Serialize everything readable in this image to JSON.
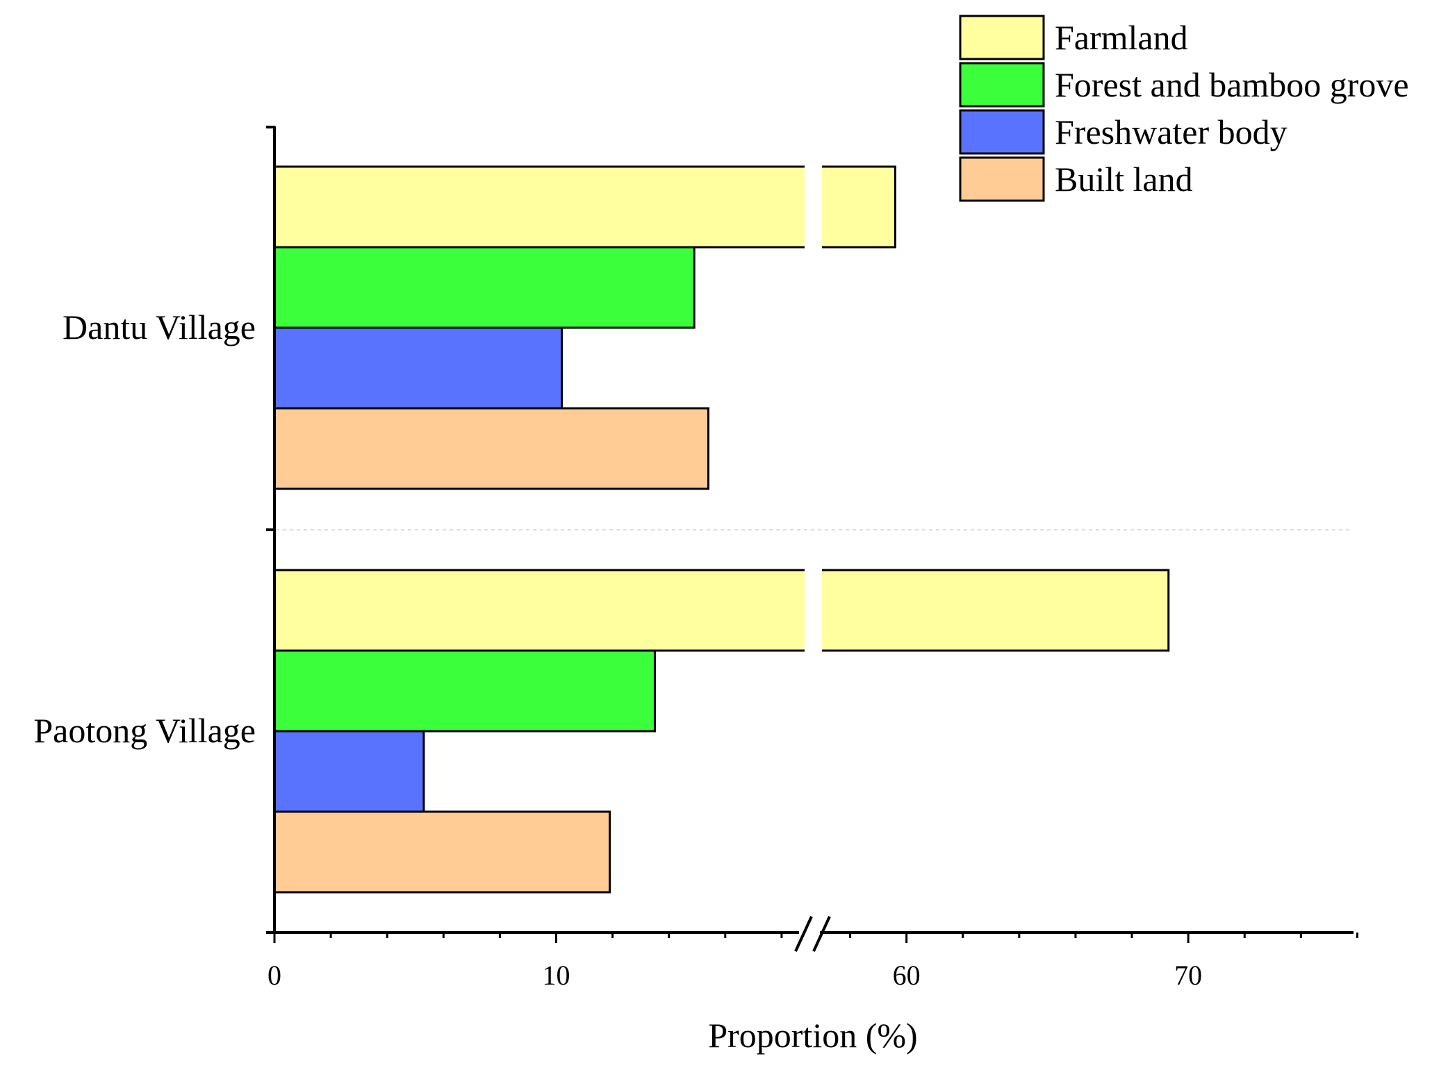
{
  "chart_data": {
    "type": "bar",
    "orientation": "horizontal",
    "categories": [
      "Dantu Village",
      "Paotong Village"
    ],
    "series": [
      {
        "name": "Farmland",
        "color": "#ffffa0",
        "values": [
          59.6,
          69.3
        ]
      },
      {
        "name": "Forest and bamboo grove",
        "color": "#3cff3c",
        "values": [
          14.9,
          13.5
        ]
      },
      {
        "name": "Freshwater body",
        "color": "#5a73ff",
        "values": [
          10.2,
          5.3
        ]
      },
      {
        "name": "Built land",
        "color": "#ffcc96",
        "values": [
          15.4,
          11.9
        ]
      }
    ],
    "xlabel": "Proportion (%)",
    "ylabel": "",
    "x_segments": [
      {
        "range": [
          0,
          19
        ],
        "ticks": [
          "0",
          "10"
        ]
      },
      {
        "range": [
          57,
          76
        ],
        "ticks": [
          "60",
          "70"
        ]
      }
    ],
    "axis_break": true,
    "legend_position": "top-right"
  }
}
